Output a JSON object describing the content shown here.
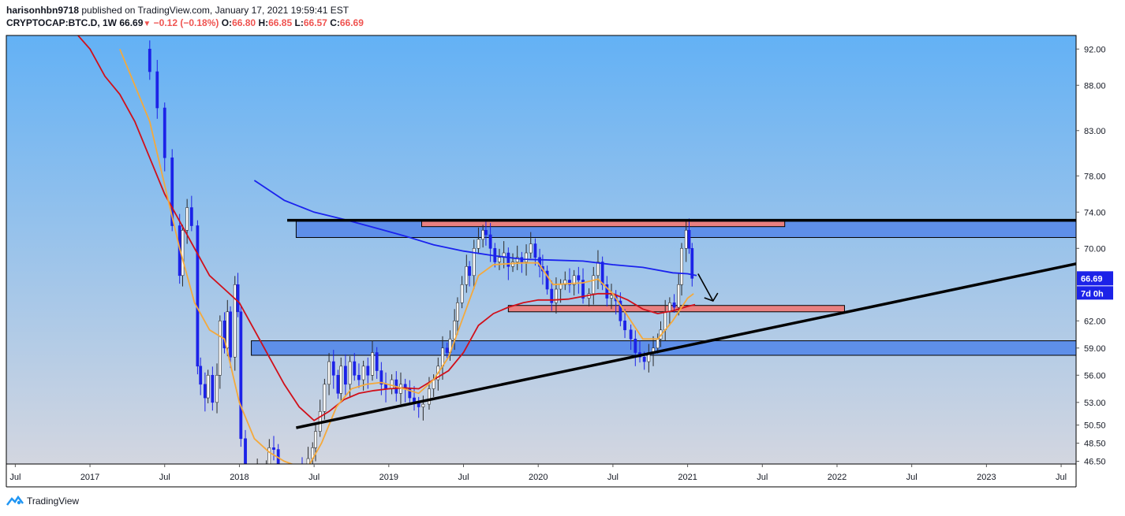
{
  "header": {
    "publisher": "harisonhbn9718",
    "published_text": "published on TradingView.com, January 17, 2021 19:59:41 EST",
    "symbol": "CRYPTOCAP:BTC.D, 1W",
    "last": "66.69",
    "change": "−0.12 (−0.18%)",
    "o_label": "O:",
    "o_value": "66.80",
    "h_label": "H:",
    "h_value": "66.85",
    "l_label": "L:",
    "l_value": "66.57",
    "c_label": "C:",
    "c_value": "66.69"
  },
  "footer": {
    "brand": "TradingView"
  },
  "colors": {
    "bg_top": "#63b1f5",
    "bg_bottom": "#d3d6e0",
    "candle_up": "#ffffff",
    "candle_down": "#1c22e8",
    "ma_blue": "#1a22ee",
    "ma_red": "#d0101a",
    "ma_orange": "#f4a93c",
    "zone_blue": "#5e8fe9",
    "zone_red": "#e98080",
    "price_tag": "#1c22e8"
  },
  "chart_data": {
    "type": "candlestick",
    "symbol": "CRYPTOCAP:BTC.D",
    "interval": "1W",
    "y_ticks": [
      "92.00",
      "88.00",
      "83.00",
      "78.00",
      "74.00",
      "70.00",
      "66.69",
      "62.00",
      "59.00",
      "56.00",
      "53.00",
      "50.50",
      "48.50",
      "46.50"
    ],
    "y_tick_values": [
      92,
      88,
      83,
      78,
      74,
      70,
      62,
      59,
      56,
      53,
      50.5,
      48.5,
      46.5
    ],
    "last_price": "66.69",
    "countdown": "7d 0h",
    "x_ticks": [
      "Jul",
      "2017",
      "Jul",
      "2018",
      "Jul",
      "2019",
      "Jul",
      "2020",
      "Jul",
      "2021",
      "Jul",
      "2022",
      "Jul",
      "2023",
      "Jul"
    ],
    "x_tick_years": [
      2016.5,
      2017.0,
      2017.5,
      2018.0,
      2018.5,
      2019.0,
      2019.5,
      2020.0,
      2020.5,
      2021.0,
      2021.5,
      2022.0,
      2022.5,
      2023.0,
      2023.5
    ],
    "ylim": [
      46.2,
      93.5
    ],
    "xlim": [
      2016.44,
      2023.6
    ],
    "close_series": [
      [
        2017.32,
        92
      ],
      [
        2017.4,
        89.5
      ],
      [
        2017.45,
        85.5
      ],
      [
        2017.5,
        80
      ],
      [
        2017.55,
        72.5
      ],
      [
        2017.6,
        67
      ],
      [
        2017.62,
        72
      ],
      [
        2017.65,
        74.5
      ],
      [
        2017.68,
        72.5
      ],
      [
        2017.72,
        57
      ],
      [
        2017.74,
        55
      ],
      [
        2017.77,
        53.5
      ],
      [
        2017.79,
        56
      ],
      [
        2017.82,
        53
      ],
      [
        2017.85,
        56
      ],
      [
        2017.87,
        62
      ],
      [
        2017.9,
        59
      ],
      [
        2017.92,
        63
      ],
      [
        2017.94,
        58
      ],
      [
        2017.97,
        66
      ],
      [
        2017.99,
        63
      ],
      [
        2018.01,
        49
      ],
      [
        2018.04,
        44.2
      ],
      [
        2018.12,
        45.5
      ],
      [
        2018.18,
        46
      ],
      [
        2018.2,
        48
      ],
      [
        2018.23,
        47.8
      ],
      [
        2018.26,
        46
      ],
      [
        2018.42,
        45.4
      ],
      [
        2018.46,
        46.8
      ],
      [
        2018.49,
        48
      ],
      [
        2018.51,
        49.8
      ],
      [
        2018.54,
        52
      ],
      [
        2018.57,
        55
      ],
      [
        2018.6,
        57.5
      ],
      [
        2018.63,
        56
      ],
      [
        2018.66,
        54
      ],
      [
        2018.68,
        57
      ],
      [
        2018.71,
        55
      ],
      [
        2018.74,
        57.5
      ],
      [
        2018.77,
        56
      ],
      [
        2018.8,
        55.5
      ],
      [
        2018.83,
        57
      ],
      [
        2018.86,
        56
      ],
      [
        2018.89,
        58.5
      ],
      [
        2018.92,
        56.5
      ],
      [
        2018.95,
        55
      ],
      [
        2018.98,
        54.5
      ],
      [
        2019.02,
        55.5
      ],
      [
        2019.05,
        54
      ],
      [
        2019.08,
        55
      ],
      [
        2019.11,
        54.5
      ],
      [
        2019.14,
        53.5
      ],
      [
        2019.17,
        53
      ],
      [
        2019.2,
        52.5
      ],
      [
        2019.23,
        52.8
      ],
      [
        2019.27,
        54.5
      ],
      [
        2019.3,
        55.5
      ],
      [
        2019.33,
        57
      ],
      [
        2019.36,
        59
      ],
      [
        2019.39,
        58.5
      ],
      [
        2019.41,
        60
      ],
      [
        2019.44,
        62
      ],
      [
        2019.46,
        64
      ],
      [
        2019.49,
        66
      ],
      [
        2019.52,
        68
      ],
      [
        2019.54,
        67
      ],
      [
        2019.57,
        70
      ],
      [
        2019.6,
        71
      ],
      [
        2019.63,
        72
      ],
      [
        2019.65,
        71.5
      ],
      [
        2019.68,
        70
      ],
      [
        2019.71,
        68.5
      ],
      [
        2019.74,
        69
      ],
      [
        2019.77,
        69.5
      ],
      [
        2019.8,
        68
      ],
      [
        2019.83,
        68.5
      ],
      [
        2019.86,
        69
      ],
      [
        2019.89,
        68.5
      ],
      [
        2019.92,
        69.5
      ],
      [
        2019.95,
        70.5
      ],
      [
        2019.98,
        69
      ],
      [
        2020.01,
        68
      ],
      [
        2020.03,
        67.5
      ],
      [
        2020.06,
        65.5
      ],
      [
        2020.09,
        64
      ],
      [
        2020.12,
        65.5
      ],
      [
        2020.15,
        66
      ],
      [
        2020.18,
        66.5
      ],
      [
        2020.21,
        66
      ],
      [
        2020.24,
        67
      ],
      [
        2020.27,
        66.5
      ],
      [
        2020.3,
        64.5
      ],
      [
        2020.34,
        65
      ],
      [
        2020.37,
        67
      ],
      [
        2020.4,
        68.5
      ],
      [
        2020.43,
        66
      ],
      [
        2020.46,
        64.5
      ],
      [
        2020.49,
        64.8
      ],
      [
        2020.52,
        64.2
      ],
      [
        2020.55,
        62
      ],
      [
        2020.58,
        61
      ],
      [
        2020.62,
        60
      ],
      [
        2020.65,
        58.5
      ],
      [
        2020.68,
        58
      ],
      [
        2020.71,
        57.5
      ],
      [
        2020.74,
        58.5
      ],
      [
        2020.77,
        59
      ],
      [
        2020.8,
        60
      ],
      [
        2020.82,
        61
      ],
      [
        2020.85,
        63
      ],
      [
        2020.88,
        64
      ],
      [
        2020.91,
        63.5
      ],
      [
        2020.94,
        66
      ],
      [
        2020.96,
        70
      ],
      [
        2020.99,
        72
      ],
      [
        2021.01,
        70
      ],
      [
        2021.03,
        66.69
      ]
    ],
    "moving_averages": [
      {
        "color": "blue",
        "points": [
          [
            2018.1,
            77.5
          ],
          [
            2018.3,
            75.3
          ],
          [
            2018.5,
            74
          ],
          [
            2018.7,
            73.2
          ],
          [
            2018.9,
            72.3
          ],
          [
            2019.1,
            71.4
          ],
          [
            2019.3,
            70.4
          ],
          [
            2019.5,
            69.7
          ],
          [
            2019.7,
            69.2
          ],
          [
            2019.9,
            68.8
          ],
          [
            2020.1,
            68.7
          ],
          [
            2020.3,
            68.6
          ],
          [
            2020.5,
            68.2
          ],
          [
            2020.7,
            67.9
          ],
          [
            2020.9,
            67.3
          ],
          [
            2021.0,
            67.2
          ],
          [
            2021.06,
            67.0
          ]
        ]
      },
      {
        "color": "red",
        "points": [
          [
            2016.92,
            93.5
          ],
          [
            2017.0,
            92
          ],
          [
            2017.1,
            89
          ],
          [
            2017.2,
            87
          ],
          [
            2017.3,
            84
          ],
          [
            2017.4,
            80
          ],
          [
            2017.5,
            76
          ],
          [
            2017.6,
            73
          ],
          [
            2017.7,
            70
          ],
          [
            2017.8,
            67
          ],
          [
            2017.9,
            65.5
          ],
          [
            2018.0,
            64
          ],
          [
            2018.1,
            61
          ],
          [
            2018.2,
            58
          ],
          [
            2018.3,
            55
          ],
          [
            2018.4,
            52.5
          ],
          [
            2018.5,
            51
          ],
          [
            2018.6,
            52
          ],
          [
            2018.7,
            53.3
          ],
          [
            2018.8,
            54
          ],
          [
            2018.9,
            54.3
          ],
          [
            2019.0,
            54.5
          ],
          [
            2019.1,
            54.6
          ],
          [
            2019.2,
            54.5
          ],
          [
            2019.3,
            55.5
          ],
          [
            2019.4,
            56.5
          ],
          [
            2019.5,
            58.5
          ],
          [
            2019.6,
            61.5
          ],
          [
            2019.7,
            62.8
          ],
          [
            2019.8,
            63.5
          ],
          [
            2019.9,
            64
          ],
          [
            2020.0,
            64.3
          ],
          [
            2020.1,
            64.3
          ],
          [
            2020.2,
            64.4
          ],
          [
            2020.3,
            64.7
          ],
          [
            2020.4,
            65
          ],
          [
            2020.5,
            65
          ],
          [
            2020.6,
            64.3
          ],
          [
            2020.7,
            63.3
          ],
          [
            2020.8,
            62.8
          ],
          [
            2020.9,
            63.1
          ],
          [
            2021.0,
            63.6
          ],
          [
            2021.05,
            63.8
          ]
        ]
      },
      {
        "color": "orange",
        "points": [
          [
            2017.2,
            92
          ],
          [
            2017.3,
            88
          ],
          [
            2017.4,
            84
          ],
          [
            2017.5,
            77
          ],
          [
            2017.6,
            70
          ],
          [
            2017.7,
            64
          ],
          [
            2017.8,
            61
          ],
          [
            2017.9,
            60
          ],
          [
            2018.0,
            53
          ],
          [
            2018.1,
            49
          ],
          [
            2018.2,
            47.5
          ],
          [
            2018.3,
            46.5
          ],
          [
            2018.45,
            45.6
          ],
          [
            2018.55,
            48.5
          ],
          [
            2018.65,
            52.5
          ],
          [
            2018.75,
            54.5
          ],
          [
            2018.85,
            55
          ],
          [
            2018.95,
            55.2
          ],
          [
            2019.1,
            54.5
          ],
          [
            2019.2,
            54
          ],
          [
            2019.3,
            55.5
          ],
          [
            2019.4,
            58
          ],
          [
            2019.5,
            62.5
          ],
          [
            2019.6,
            67
          ],
          [
            2019.7,
            68.2
          ],
          [
            2019.8,
            68.3
          ],
          [
            2019.9,
            68.4
          ],
          [
            2020.0,
            68.4
          ],
          [
            2020.1,
            66
          ],
          [
            2020.2,
            66.1
          ],
          [
            2020.3,
            66.2
          ],
          [
            2020.4,
            66.6
          ],
          [
            2020.5,
            65
          ],
          [
            2020.6,
            62.5
          ],
          [
            2020.7,
            60
          ],
          [
            2020.8,
            60
          ],
          [
            2020.9,
            62
          ],
          [
            2021.0,
            64.5
          ],
          [
            2021.04,
            65
          ]
        ]
      }
    ],
    "zones": [
      {
        "color": "blue",
        "x0": 2018.38,
        "x1": 2023.6,
        "y0": 71.2,
        "y1": 73.0
      },
      {
        "color": "red",
        "x0": 2019.22,
        "x1": 2021.65,
        "y0": 72.4,
        "y1": 73.0
      },
      {
        "color": "red",
        "x0": 2019.8,
        "x1": 2022.05,
        "y0": 63.0,
        "y1": 63.7
      },
      {
        "color": "blue",
        "x0": 2018.08,
        "x1": 2023.6,
        "y0": 58.2,
        "y1": 59.8
      }
    ],
    "trendlines": [
      {
        "x0": 2018.32,
        "y0": 73.1,
        "x1": 2023.6,
        "y1": 73.1
      },
      {
        "x0": 2018.38,
        "y0": 50.2,
        "x1": 2023.6,
        "y1": 68.3
      }
    ],
    "arrow": {
      "x0": 2021.07,
      "y0": 67.2,
      "x1": 2021.17,
      "y1": 64.2
    }
  }
}
